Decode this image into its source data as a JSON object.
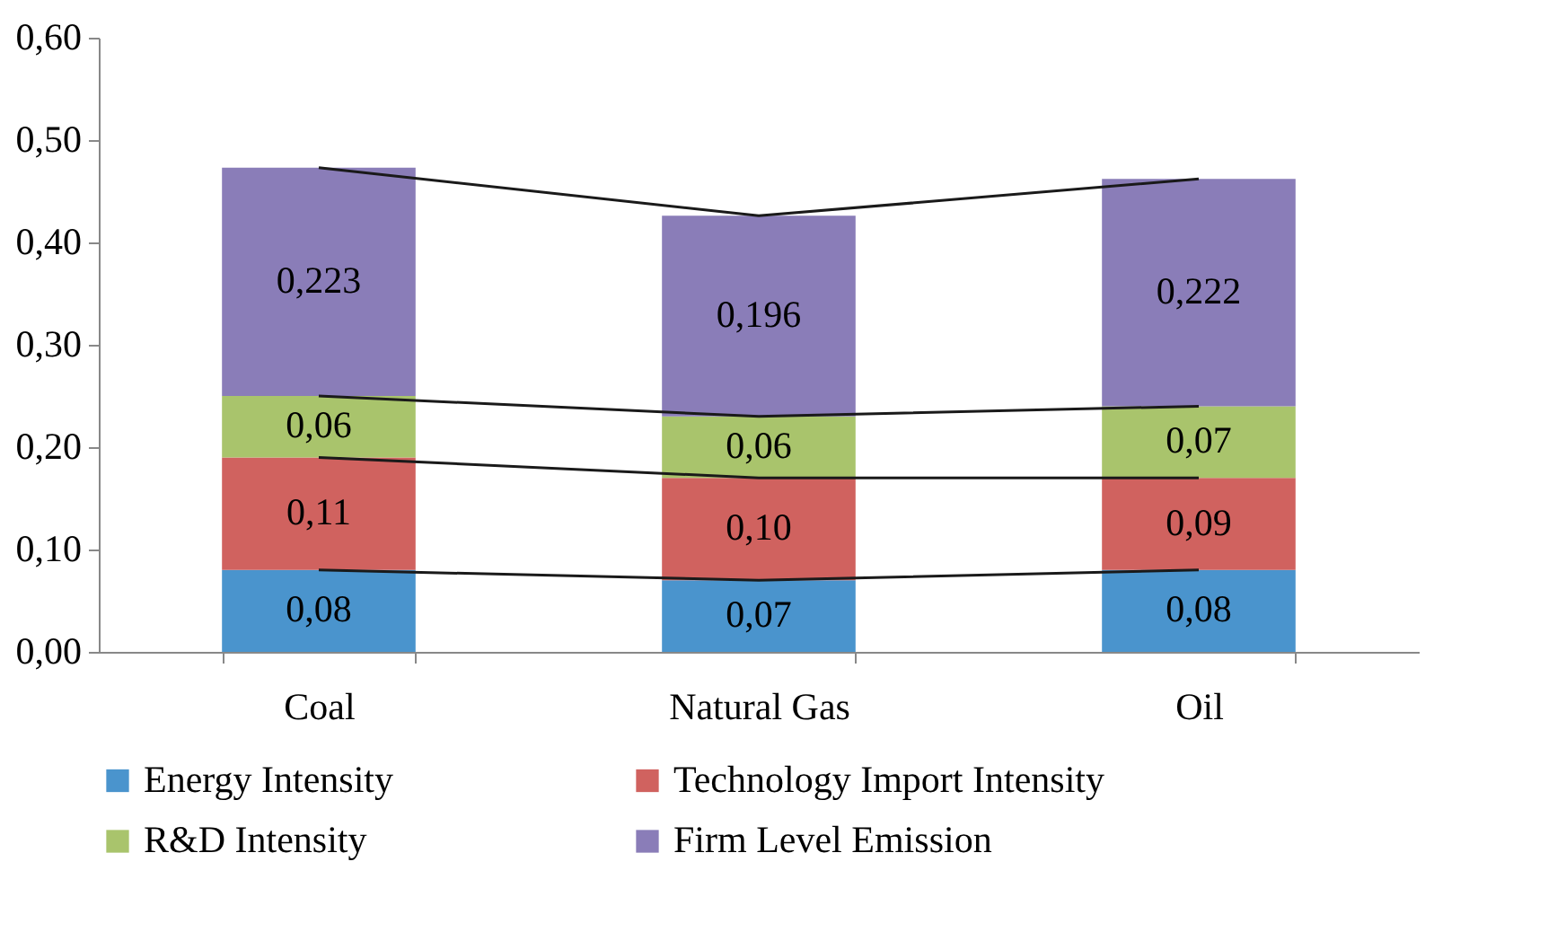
{
  "chart_data": {
    "type": "bar",
    "stacked": true,
    "categories": [
      "Coal",
      "Natural Gas",
      "Oil"
    ],
    "series": [
      {
        "name": "Energy Intensity",
        "color": "#4a94cd",
        "values": [
          0.08,
          0.07,
          0.08
        ],
        "value_labels": [
          "0,08",
          "0,07",
          "0,08"
        ]
      },
      {
        "name": "Technology Import Intensity",
        "color": "#d0625f",
        "values": [
          0.11,
          0.1,
          0.09
        ],
        "value_labels": [
          "0,11",
          "0,10",
          "0,09"
        ]
      },
      {
        "name": "R&D Intensity",
        "color": "#a9c46c",
        "values": [
          0.06,
          0.06,
          0.07
        ],
        "value_labels": [
          "0,06",
          "0,06",
          "0,07"
        ]
      },
      {
        "name": "Firm Level Emission",
        "color": "#8a7db8",
        "values": [
          0.223,
          0.196,
          0.222
        ],
        "value_labels": [
          "0,223",
          "0,196",
          "0,222"
        ]
      },
      {
        "type": "line",
        "color": "#1a1a1a",
        "values": [
          0.08,
          0.07,
          0.08
        ]
      },
      {
        "type": "line",
        "color": "#1a1a1a",
        "values": [
          0.19,
          0.17,
          0.17
        ]
      },
      {
        "type": "line",
        "color": "#1a1a1a",
        "values": [
          0.25,
          0.23,
          0.24
        ]
      },
      {
        "type": "line",
        "color": "#1a1a1a",
        "values": [
          0.473,
          0.426,
          0.462
        ]
      }
    ],
    "ylim": [
      0,
      0.6
    ],
    "yticks": [
      {
        "value": 0,
        "label": "0,00"
      },
      {
        "value": 0.1,
        "label": "0,10"
      },
      {
        "value": 0.2,
        "label": "0,20"
      },
      {
        "value": 0.3,
        "label": "0,30"
      },
      {
        "value": 0.4,
        "label": "0,40"
      },
      {
        "value": 0.5,
        "label": "0,50"
      },
      {
        "value": 0.6,
        "label": "0,60"
      }
    ],
    "grid": false,
    "legend": "bottom"
  }
}
